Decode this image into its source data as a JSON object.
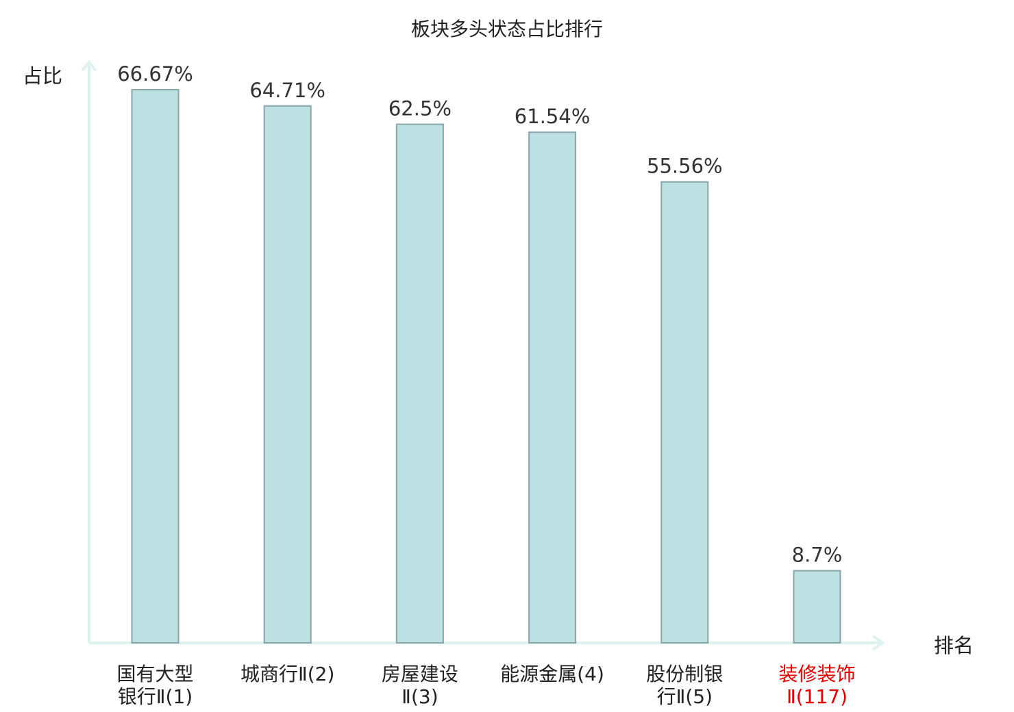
{
  "chart_data": {
    "type": "bar",
    "title": "板块多头状态占比排行",
    "ylabel": "占比",
    "xlabel": "排名",
    "categories": [
      [
        "国有大型",
        "银行Ⅱ(1)"
      ],
      [
        "城商行Ⅱ(2)"
      ],
      [
        "房屋建设",
        "Ⅱ(3)"
      ],
      [
        "能源金属(4)"
      ],
      [
        "股份制银",
        "行Ⅱ(5)"
      ],
      [
        "装修装饰",
        "Ⅱ(117)"
      ]
    ],
    "values": [
      66.67,
      64.71,
      62.5,
      61.54,
      55.56,
      8.7
    ],
    "value_labels": [
      "66.67%",
      "64.71%",
      "62.5%",
      "61.54%",
      "55.56%",
      "8.7%"
    ],
    "highlight_index": 5,
    "ylim": [
      0,
      66.67
    ],
    "grid": false,
    "colors": {
      "bar_fill": "#bde0e3",
      "bar_stroke": "#89a6a9",
      "axis": "#def2ef",
      "text": "#333333",
      "title": "#222222",
      "highlight": "#e60000"
    }
  }
}
